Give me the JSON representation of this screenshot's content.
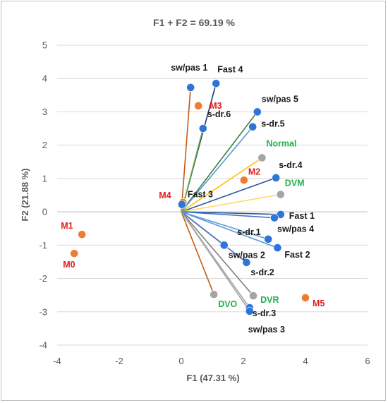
{
  "chart_data": {
    "type": "scatter",
    "title": "F1 + F2 = 69.19 %",
    "xlabel": "F1 (47.31 %)",
    "ylabel": "F2 (21.88 %)",
    "xlim": [
      -4,
      6
    ],
    "ylim": [
      -4,
      5
    ],
    "xticks": [
      "-4",
      "-2",
      "0",
      "2",
      "4",
      "6"
    ],
    "yticks": [
      "-4",
      "-3",
      "-2",
      "-1",
      "0",
      "1",
      "2",
      "3",
      "4",
      "5"
    ],
    "grid": "horizontal",
    "colors": {
      "blue": "#2e75d6",
      "orange": "#ed7d31",
      "gray": "#a5a5a5",
      "red_label": "#e02020",
      "green_label": "#22b14c",
      "black_label": "#1a1a1a"
    },
    "vectors": [
      {
        "label": "Fast 4",
        "x": 1.12,
        "y": 3.85,
        "color": "blue",
        "line": "#1f3a6e",
        "label_color": "black_label"
      },
      {
        "label": "sw/pas 1",
        "x": 0.3,
        "y": 3.73,
        "color": "blue",
        "line": "#c55a11",
        "label_color": "black_label"
      },
      {
        "label": "sw/pas 5",
        "x": 2.45,
        "y": 3.0,
        "color": "blue",
        "line": "#3a7d3a",
        "label_color": "black_label"
      },
      {
        "label": "s-dr.6",
        "x": 0.7,
        "y": 2.5,
        "color": "blue",
        "line": "#70ad47",
        "label_color": "black_label"
      },
      {
        "label": "s-dr.5",
        "x": 2.3,
        "y": 2.55,
        "color": "blue",
        "line": "#5b9bd5",
        "label_color": "black_label"
      },
      {
        "label": "Normal",
        "x": 2.6,
        "y": 1.62,
        "color": "gray",
        "line": "#ffc000",
        "label_color": "green_label"
      },
      {
        "label": "s-dr.4",
        "x": 3.05,
        "y": 1.02,
        "color": "blue",
        "line": "#2e5c9a",
        "label_color": "black_label"
      },
      {
        "label": "DVM",
        "x": 3.2,
        "y": 0.52,
        "color": "gray",
        "line": "#ffd966",
        "label_color": "green_label"
      },
      {
        "label": "Fast 1",
        "x": 3.2,
        "y": -0.08,
        "color": "blue",
        "line": "#2e5c9a",
        "label_color": "black_label"
      },
      {
        "label": "sw/pas 4",
        "x": 3.0,
        "y": -0.18,
        "color": "blue",
        "line": "#4472c4",
        "label_color": "black_label"
      },
      {
        "label": "s-dr.1",
        "x": 2.8,
        "y": -0.82,
        "color": "blue",
        "line": "#5b9bd5",
        "label_color": "black_label"
      },
      {
        "label": "Fast 2",
        "x": 3.1,
        "y": -1.08,
        "color": "blue",
        "line": "#5b9bd5",
        "label_color": "black_label"
      },
      {
        "label": "sw/pas 2",
        "x": 1.38,
        "y": -1.0,
        "color": "blue",
        "line": "#9e480e",
        "label_color": "black_label"
      },
      {
        "label": "s-dr.2",
        "x": 2.1,
        "y": -1.52,
        "color": "blue",
        "line": "#4472c4",
        "label_color": "black_label"
      },
      {
        "label": "DVO",
        "x": 1.05,
        "y": -2.48,
        "color": "gray",
        "line": "#c55a11",
        "label_color": "green_label"
      },
      {
        "label": "DVR",
        "x": 2.32,
        "y": -2.52,
        "color": "gray",
        "line": "#7f7f7f",
        "label_color": "green_label"
      },
      {
        "label": "s-dr.3",
        "x": 2.2,
        "y": -2.88,
        "color": "blue",
        "line": "#a5a5a5",
        "label_color": "black_label"
      },
      {
        "label": "sw/pas 3",
        "x": 2.2,
        "y": -2.98,
        "color": "blue",
        "line": "#a5a5a5",
        "label_color": "black_label"
      }
    ],
    "points": [
      {
        "label": "M3",
        "x": 0.55,
        "y": 3.18,
        "color": "orange",
        "label_color": "red_label"
      },
      {
        "label": "M2",
        "x": 2.02,
        "y": 0.95,
        "color": "orange",
        "label_color": "red_label"
      },
      {
        "label": "M4",
        "x": 0.05,
        "y": 0.28,
        "color": "orange",
        "label_color": "red_label"
      },
      {
        "label": "Fast 3",
        "x": 0.02,
        "y": 0.22,
        "color": "blue",
        "label_color": "black_label"
      },
      {
        "label": "M1",
        "x": -3.2,
        "y": -0.68,
        "color": "orange",
        "label_color": "red_label"
      },
      {
        "label": "M0",
        "x": -3.45,
        "y": -1.25,
        "color": "orange",
        "label_color": "red_label"
      },
      {
        "label": "M5",
        "x": 4.0,
        "y": -2.58,
        "color": "orange",
        "label_color": "red_label"
      }
    ]
  }
}
